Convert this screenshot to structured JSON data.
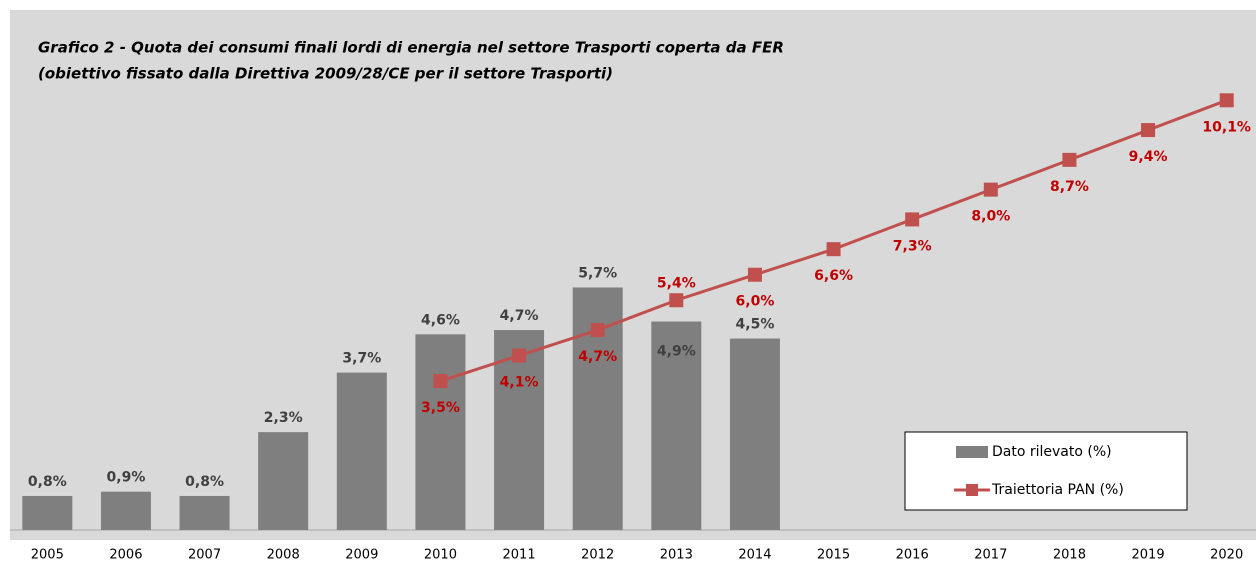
{
  "chart_data": {
    "type": "bar-line",
    "title": "Grafico 2 -  Quota dei consumi finali lordi di energia nel settore Trasporti coperta da FER",
    "subtitle": "(obiettivo fissato dalla Direttiva 2009/28/CE per il settore Trasporti)",
    "categories": [
      "2005",
      "2006",
      "2007",
      "2008",
      "2009",
      "2010",
      "2011",
      "2012",
      "2013",
      "2014",
      "2015",
      "2016",
      "2017",
      "2018",
      "2019",
      "2020"
    ],
    "ylim": [
      0,
      11
    ],
    "series": [
      {
        "name": "Dato rilevato (%)",
        "type": "bar",
        "color": "#7f7f7f",
        "values": [
          0.8,
          0.9,
          0.8,
          2.3,
          3.7,
          4.6,
          4.7,
          5.7,
          4.9,
          4.5,
          null,
          null,
          null,
          null,
          null,
          null
        ],
        "value_labels": [
          "0,8%",
          "0,9%",
          "0,8%",
          "2,3%",
          "3,7%",
          "4,6%",
          "4,7%",
          "5,7%",
          "4,9%",
          "4,5%",
          null,
          null,
          null,
          null,
          null,
          null
        ]
      },
      {
        "name": "Traiettoria PAN (%)",
        "type": "line",
        "color": "#c0504d",
        "values": [
          null,
          null,
          null,
          null,
          null,
          3.5,
          4.1,
          4.7,
          5.4,
          6.0,
          6.6,
          7.3,
          8.0,
          8.7,
          9.4,
          10.1
        ],
        "value_labels": [
          null,
          null,
          null,
          null,
          null,
          "3,5%",
          "4,1%",
          "4,7%",
          "5,4%",
          "6,0%",
          "6,6%",
          "7,3%",
          "8,0%",
          "8,7%",
          "9,4%",
          "10,1%"
        ]
      }
    ]
  }
}
